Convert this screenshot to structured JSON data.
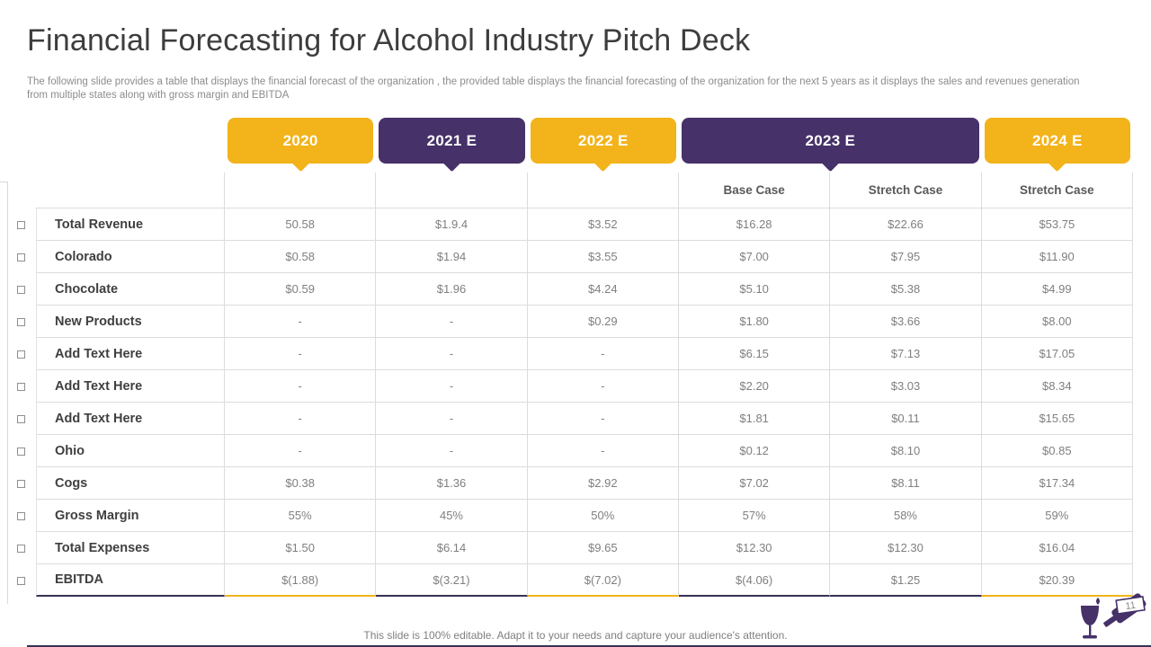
{
  "slide": {
    "title": "Financial Forecasting for Alcohol Industry Pitch Deck",
    "subtitle": "The following slide provides a table that displays the financial forecast of the organization , the provided table displays the financial forecasting of the organization for the next 5 years as it displays the sales and revenues generation from multiple states along with gross margin and EBITDA",
    "footer": "This slide is 100% editable. Adapt it to your needs and capture your audience's attention.",
    "page_number": "11"
  },
  "colors": {
    "accent_yellow": "#F2B31B",
    "accent_purple": "#463168",
    "underline_dark": "#3A3153",
    "grid_line": "#DCDCDC",
    "label_text": "#3F3F3F",
    "value_text": "#7F7F7F"
  },
  "table": {
    "year_chips": [
      {
        "label": "2020",
        "color": "#F2B31B",
        "span": 1
      },
      {
        "label": "2021 E",
        "color": "#463168",
        "span": 1
      },
      {
        "label": "2022 E",
        "color": "#F2B31B",
        "span": 1
      },
      {
        "label": "2023 E",
        "color": "#463168",
        "span": 2
      },
      {
        "label": "2024 E",
        "color": "#F2B31B",
        "span": 1
      }
    ],
    "case_headers": [
      "",
      "",
      "",
      "Base Case",
      "Stretch Case",
      "Stretch Case"
    ],
    "bottom_border": [
      "dark",
      "yellow",
      "dark",
      "yellow",
      "dark",
      "dark",
      "yellow"
    ],
    "rows": [
      {
        "label": "Total Revenue",
        "values": [
          "50.58",
          "$1.9.4",
          "$3.52",
          "$16.28",
          "$22.66",
          "$53.75"
        ]
      },
      {
        "label": "Colorado",
        "values": [
          "$0.58",
          "$1.94",
          "$3.55",
          "$7.00",
          "$7.95",
          "$11.90"
        ]
      },
      {
        "label": "Chocolate",
        "values": [
          "$0.59",
          "$1.96",
          "$4.24",
          "$5.10",
          "$5.38",
          "$4.99"
        ]
      },
      {
        "label": "New Products",
        "values": [
          "-",
          "-",
          "$0.29",
          "$1.80",
          "$3.66",
          "$8.00"
        ]
      },
      {
        "label": "Add Text Here",
        "values": [
          "-",
          "-",
          "-",
          "$6.15",
          "$7.13",
          "$17.05"
        ]
      },
      {
        "label": "Add Text Here",
        "values": [
          "-",
          "-",
          "-",
          "$2.20",
          "$3.03",
          "$8.34"
        ]
      },
      {
        "label": "Add Text Here",
        "values": [
          "-",
          "-",
          "-",
          "$1.81",
          "$0.11",
          "$15.65"
        ]
      },
      {
        "label": "Ohio",
        "values": [
          "-",
          "-",
          "-",
          "$0.12",
          "$8.10",
          "$0.85"
        ]
      },
      {
        "label": "Cogs",
        "values": [
          "$0.38",
          "$1.36",
          "$2.92",
          "$7.02",
          "$8.11",
          "$17.34"
        ]
      },
      {
        "label": "Gross Margin",
        "values": [
          "55%",
          "45%",
          "50%",
          "57%",
          "58%",
          "59%"
        ]
      },
      {
        "label": "Total Expenses",
        "values": [
          "$1.50",
          "$6.14",
          "$9.65",
          "$12.30",
          "$12.30",
          "$16.04"
        ]
      },
      {
        "label": "EBITDA",
        "values": [
          "$(1.88)",
          "$(3.21)",
          "$(7.02)",
          "$(4.06)",
          "$1.25",
          "$20.39"
        ]
      }
    ]
  }
}
